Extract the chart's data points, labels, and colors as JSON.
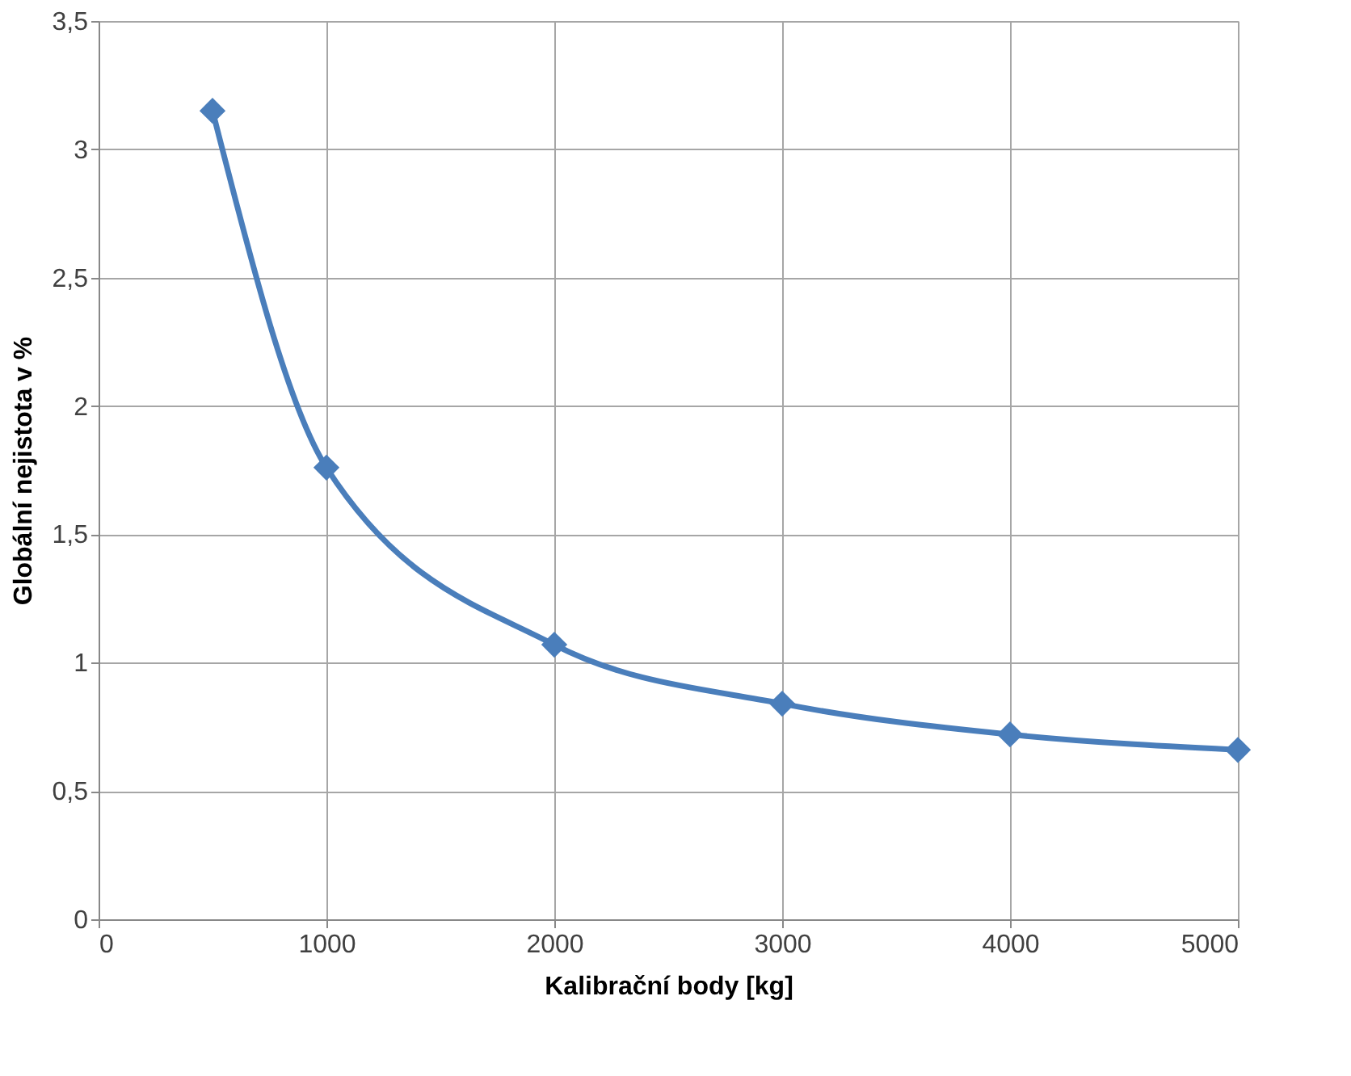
{
  "chart_data": {
    "type": "line",
    "xlabel": "Kalibrační body [kg]",
    "ylabel": "Globální nejistota v %",
    "x": [
      500,
      1000,
      2000,
      3000,
      4000,
      5000
    ],
    "series": [
      {
        "color": "#4a7ebb",
        "values": [
          3.15,
          1.76,
          1.07,
          0.84,
          0.72,
          0.66
        ]
      }
    ],
    "xlim": [
      0,
      5000
    ],
    "xticks": [
      0,
      1000,
      2000,
      3000,
      4000,
      5000
    ],
    "ylim": [
      0,
      3.5
    ],
    "yticks": [
      0,
      {
        "value": 0.5,
        "label": "0,5"
      },
      1,
      {
        "value": 1.5,
        "label": "1,5"
      },
      2,
      {
        "value": 2.5,
        "label": "2,5"
      },
      3,
      {
        "value": 3.5,
        "label": "3,5"
      }
    ],
    "grid": true,
    "marker": "diamond",
    "line_style": "solid"
  }
}
